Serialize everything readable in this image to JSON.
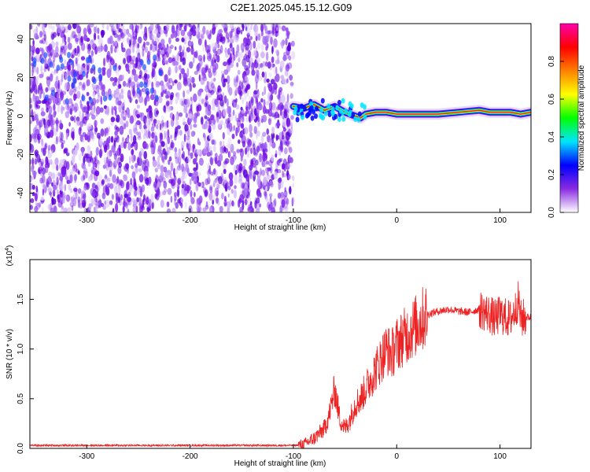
{
  "title": "C2E1.2025.045.15.12.G09",
  "chart_data": [
    {
      "type": "heatmap",
      "xlabel": "Height of straight line (km)",
      "ylabel": "Frequency (Hz)",
      "xlim": [
        -355,
        130
      ],
      "ylim": [
        -50,
        48
      ],
      "xticks": [
        -300,
        -200,
        -100,
        0,
        100
      ],
      "xtick_labels": [
        "-300",
        "-200",
        "-100",
        "0",
        "100"
      ],
      "yticks": [
        -40,
        -20,
        0,
        20,
        40
      ],
      "ytick_labels": [
        "-40",
        "-20",
        "0",
        "20",
        "40"
      ],
      "noise_region_x": [
        -355,
        -100
      ],
      "signal_line": {
        "x": [
          -100,
          -90,
          -80,
          -70,
          -60,
          -50,
          -40,
          -35,
          -30,
          -20,
          -10,
          0,
          20,
          40,
          60,
          80,
          90,
          100,
          110,
          120,
          130
        ],
        "y": [
          5,
          4,
          6,
          3,
          5,
          2,
          0,
          -1,
          1,
          2,
          2,
          1,
          1,
          1,
          2,
          3,
          2,
          2,
          2,
          1,
          2
        ]
      },
      "colorbar": {
        "label": "Normalized spectral amplitude",
        "range": [
          0,
          1
        ],
        "ticks": [
          0.0,
          0.2,
          0.4,
          0.6,
          0.8
        ],
        "tick_labels": [
          "0.0",
          "0.2",
          "0.4",
          "0.6",
          "0.8"
        ],
        "colors": [
          "#ffffff",
          "#8a2be2",
          "#0000ff",
          "#00e5ff",
          "#00ff00",
          "#ffff00",
          "#ff8000",
          "#ff0000",
          "#ff00aa"
        ]
      },
      "grid": false
    },
    {
      "type": "line",
      "xlabel": "Height of straight line (km)",
      "ylabel": "SNR (10 * v/v)",
      "y_multiplier_label": "(x10",
      "y_multiplier_exp": "4",
      "y_multiplier_close": ")",
      "xlim": [
        -355,
        130
      ],
      "ylim": [
        0,
        1.9
      ],
      "xticks": [
        -300,
        -200,
        -100,
        0,
        100
      ],
      "xtick_labels": [
        "-300",
        "-200",
        "-100",
        "0",
        "100"
      ],
      "yticks": [
        0.0,
        0.5,
        1.0,
        1.5
      ],
      "ytick_labels": [
        "0.0",
        "0.5",
        "1.0",
        "1.5"
      ],
      "color": "#ee2222",
      "series": [
        {
          "x": [
            -355,
            -300,
            -200,
            -120,
            -100,
            -90,
            -80,
            -70,
            -65,
            -60,
            -55,
            -50,
            -45,
            -40,
            -35,
            -30,
            -25,
            -20,
            -15,
            -10,
            -5,
            0,
            5,
            10,
            15,
            20,
            25,
            30,
            40,
            50,
            60,
            70,
            80,
            90,
            95,
            100,
            105,
            110,
            115,
            118,
            120,
            125,
            130
          ],
          "y": [
            0.03,
            0.03,
            0.03,
            0.03,
            0.03,
            0.04,
            0.1,
            0.2,
            0.35,
            0.6,
            0.3,
            0.2,
            0.3,
            0.45,
            0.5,
            0.6,
            0.7,
            0.8,
            0.9,
            1.0,
            0.95,
            1.05,
            1.1,
            1.15,
            1.2,
            1.25,
            1.3,
            1.35,
            1.38,
            1.4,
            1.38,
            1.37,
            1.4,
            1.35,
            1.3,
            1.35,
            1.32,
            1.3,
            1.4,
            1.5,
            1.3,
            1.32,
            1.32
          ]
        }
      ],
      "grid": false
    }
  ]
}
